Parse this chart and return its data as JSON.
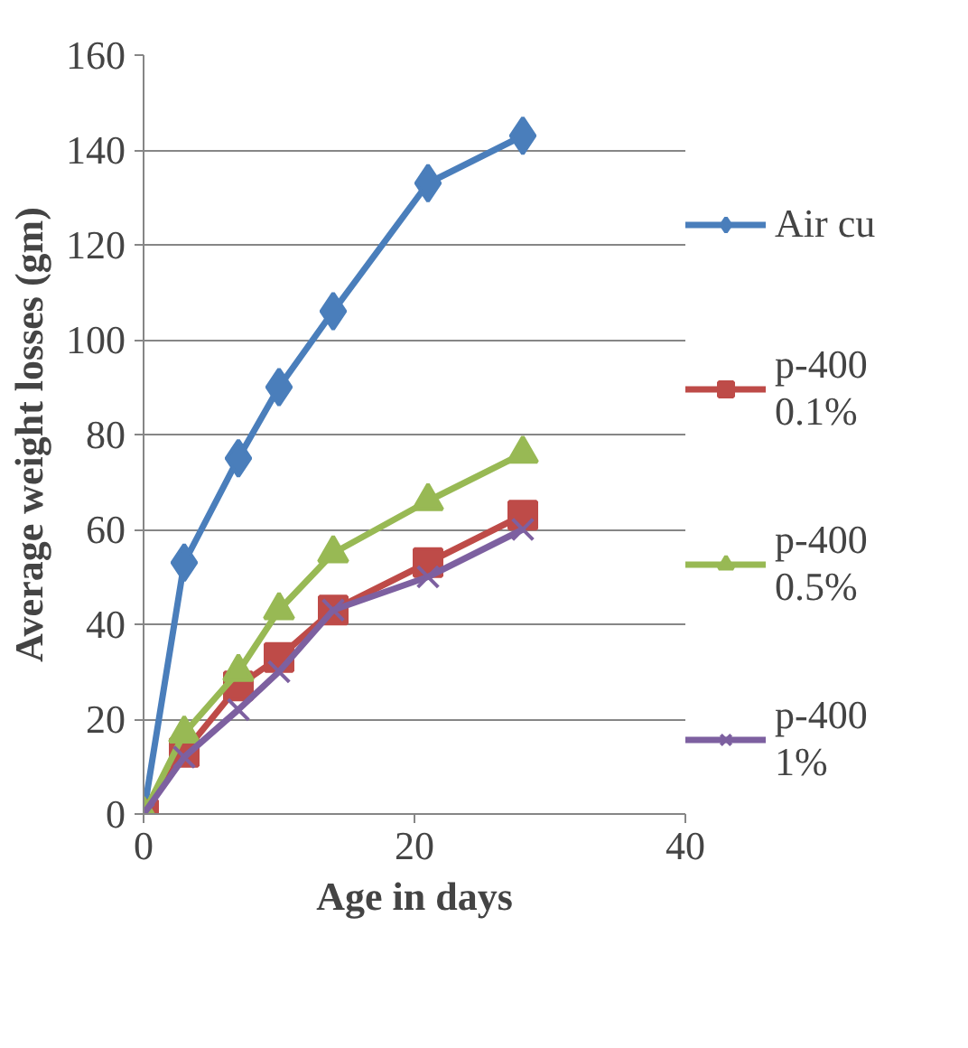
{
  "chart_data": {
    "type": "line",
    "xlabel": "Age in days",
    "ylabel": "Average weight losses (gm)",
    "x": [
      0,
      3,
      7,
      10,
      14,
      21,
      28
    ],
    "xlim": [
      0,
      40
    ],
    "xticks": [
      0,
      20,
      40
    ],
    "ylim": [
      0,
      160
    ],
    "yticks": [
      0,
      20,
      40,
      60,
      80,
      100,
      120,
      140,
      160
    ],
    "grid": "y",
    "legend": "right",
    "series": [
      {
        "name": "Air cu",
        "color": "#4a7ebb",
        "marker": "diamond",
        "values": [
          0,
          53,
          75,
          90,
          106,
          133,
          143
        ]
      },
      {
        "name": "p-400\n0.1%",
        "color": "#be4b48",
        "marker": "square",
        "values": [
          0,
          13,
          27,
          33,
          43,
          53,
          63
        ]
      },
      {
        "name": "p-400\n0.5%",
        "color": "#98b954",
        "marker": "triangle",
        "values": [
          0,
          17,
          30,
          43,
          55,
          66,
          76
        ]
      },
      {
        "name": "p-400\n1%",
        "color": "#7d60a0",
        "marker": "cross",
        "values": [
          0,
          12,
          22,
          30,
          43,
          50,
          60
        ]
      }
    ]
  }
}
